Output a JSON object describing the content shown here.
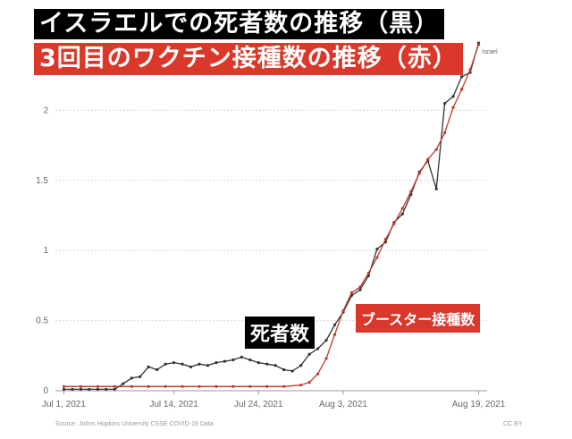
{
  "titles": {
    "line1": "イスラエルでの死者数の推移（黒）",
    "line2": "3回目のワクチン接種数の推移（赤）"
  },
  "annotations": {
    "deaths": "死者数",
    "booster": "ブースター接種数"
  },
  "footer": {
    "source": "Source: Johns Hopkins University CSSE COVID-19 Data",
    "license": "CC BY"
  },
  "colors": {
    "deaths": "#333333",
    "booster": "#c0392b",
    "grid": "#d8d8d8"
  },
  "chart_data": {
    "type": "line",
    "x_ticks": [
      "Jul 1, 2021",
      "Jul 14, 2021",
      "Jul 24, 2021",
      "Aug 3, 2021",
      "Aug 19, 2021"
    ],
    "x_tick_days": [
      0,
      13,
      23,
      33,
      49
    ],
    "y_ticks": [
      "0",
      "0.5",
      "1",
      "1.5",
      "2"
    ],
    "ylim": [
      0,
      2.5
    ],
    "xlim": [
      -1,
      50
    ],
    "grid": true,
    "series": [
      {
        "name": "Israel",
        "role": "deaths",
        "x": [
          0,
          1,
          2,
          3,
          4,
          5,
          6,
          7,
          8,
          9,
          10,
          11,
          12,
          13,
          14,
          15,
          16,
          17,
          18,
          19,
          20,
          21,
          22,
          23,
          24,
          25,
          26,
          27,
          28,
          29,
          30,
          31,
          32,
          33,
          34,
          35,
          36,
          37,
          38,
          39,
          40,
          41,
          42,
          43,
          44,
          45,
          46,
          47,
          48,
          49
        ],
        "y": [
          0.01,
          0.01,
          0.01,
          0.01,
          0.01,
          0.01,
          0.01,
          0.05,
          0.09,
          0.1,
          0.17,
          0.15,
          0.19,
          0.2,
          0.19,
          0.17,
          0.19,
          0.18,
          0.2,
          0.21,
          0.22,
          0.24,
          0.22,
          0.2,
          0.19,
          0.18,
          0.15,
          0.14,
          0.18,
          0.26,
          0.3,
          0.36,
          0.47,
          0.56,
          0.68,
          0.72,
          0.82,
          1.01,
          1.06,
          1.2,
          1.26,
          1.4,
          1.56,
          1.64,
          1.44,
          2.05,
          2.1,
          2.24,
          2.27,
          2.48
        ]
      },
      {
        "name": "",
        "role": "booster",
        "x": [
          0,
          2,
          4,
          6,
          8,
          10,
          12,
          14,
          16,
          18,
          20,
          22,
          24,
          26,
          28,
          29,
          30,
          31,
          32,
          33,
          34,
          35,
          36,
          37,
          38,
          39,
          40,
          41,
          42,
          43,
          44,
          45,
          46,
          47,
          48,
          49
        ],
        "y": [
          0.03,
          0.03,
          0.03,
          0.03,
          0.03,
          0.03,
          0.03,
          0.03,
          0.03,
          0.03,
          0.03,
          0.03,
          0.03,
          0.03,
          0.04,
          0.06,
          0.12,
          0.23,
          0.4,
          0.57,
          0.7,
          0.74,
          0.84,
          0.95,
          1.08,
          1.19,
          1.3,
          1.42,
          1.55,
          1.65,
          1.72,
          1.84,
          2.02,
          2.15,
          2.29,
          2.47
        ]
      }
    ]
  }
}
